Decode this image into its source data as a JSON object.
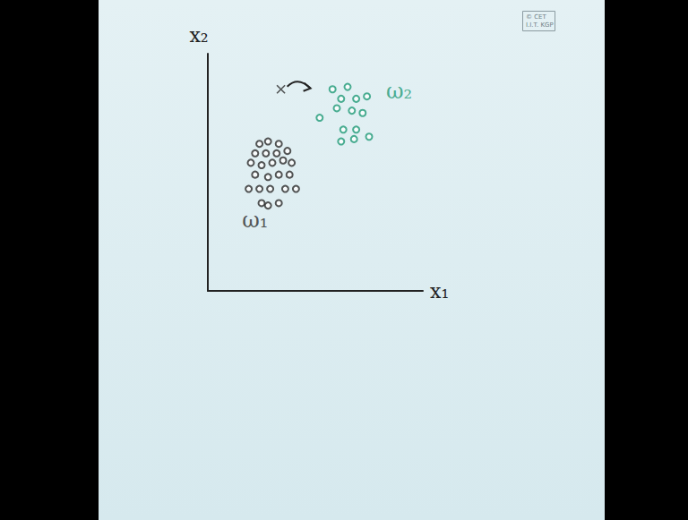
{
  "chart_data": {
    "type": "scatter",
    "xlabel": "x₁",
    "ylabel": "x₂",
    "xlim": [
      0,
      10
    ],
    "ylim": [
      0,
      10
    ],
    "tick_labels": false,
    "grid": false,
    "series": [
      {
        "color": "#2b2b2b",
        "marker": "open_circle",
        "x": [
          2.4,
          2.8,
          3.3,
          2.2,
          2.7,
          3.2,
          3.7,
          2.0,
          2.5,
          3.0,
          3.5,
          3.9,
          2.2,
          2.8,
          3.3,
          3.8,
          1.9,
          2.4,
          2.9,
          3.6,
          4.1,
          2.5,
          2.8,
          3.3
        ],
        "values": [
          6.2,
          6.3,
          6.2,
          5.8,
          5.8,
          5.8,
          5.9,
          5.4,
          5.3,
          5.4,
          5.5,
          5.4,
          4.9,
          4.8,
          4.9,
          4.9,
          4.3,
          4.3,
          4.3,
          4.3,
          4.3,
          3.7,
          3.6,
          3.7
        ]
      },
      {
        "color": "#1f9a77",
        "marker": "open_circle",
        "x": [
          5.8,
          6.5,
          6.2,
          6.9,
          7.4,
          6.0,
          6.7,
          7.2,
          5.2,
          6.3,
          6.9,
          6.2,
          6.8,
          7.5
        ],
        "values": [
          8.5,
          8.6,
          8.1,
          8.1,
          8.2,
          7.7,
          7.6,
          7.5,
          7.3,
          6.8,
          6.8,
          6.3,
          6.4,
          6.5
        ]
      },
      {
        "color": "#2b2b2b",
        "marker": "cross",
        "x": [
          3.4
        ],
        "values": [
          8.5
        ]
      }
    ],
    "annotations": [
      {
        "text": "ω₁",
        "x": 2.2,
        "y": 3.0,
        "color": "#2b2b2b"
      },
      {
        "text": "ω₂",
        "x": 8.9,
        "y": 8.4,
        "color": "#1f9a77"
      }
    ],
    "watermark": [
      "© CET",
      "I.I.T. KGP"
    ]
  }
}
